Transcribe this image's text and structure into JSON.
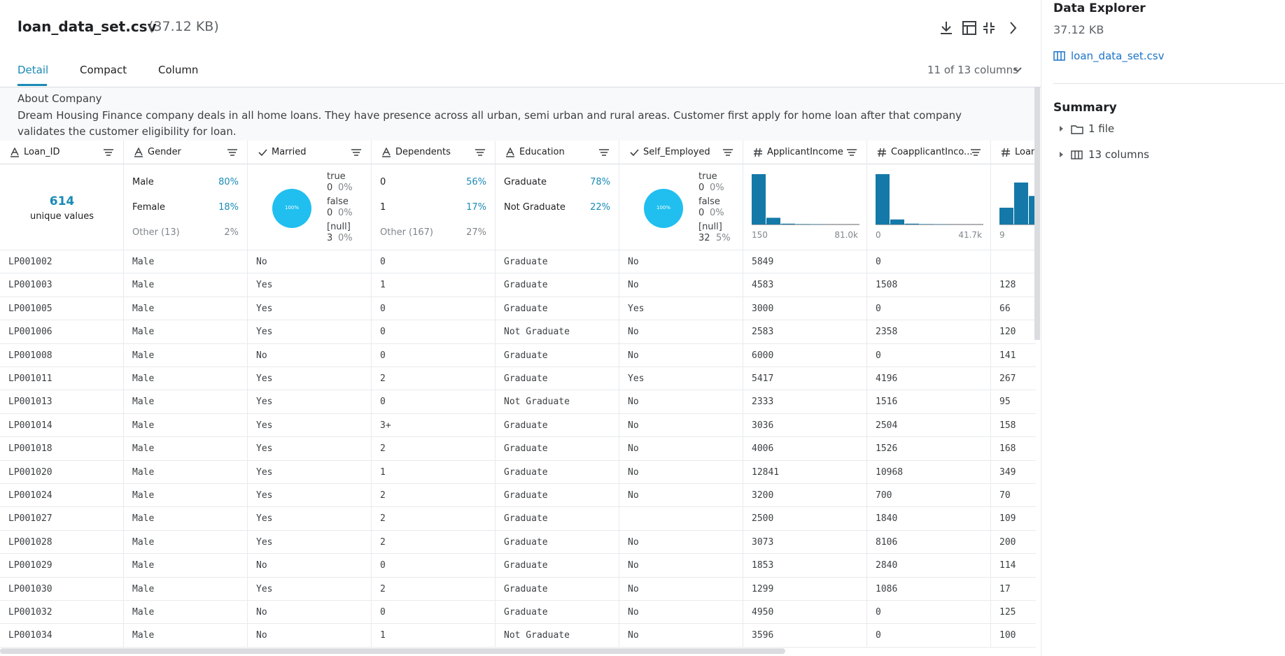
{
  "header": {
    "title": "loan_data_set.csv",
    "size": "(37.12 KB)",
    "tabs": [
      "Detail",
      "Compact",
      "Column"
    ],
    "columns_shown": "11 of 13 columns"
  },
  "about": {
    "heading": "About Company",
    "text": "Dream Housing Finance company deals in all home loans. They have presence across all urban, semi urban and rural areas. Customer first apply for home loan after that company validates the customer eligibility for loan."
  },
  "columns": [
    {
      "name": "Loan_ID",
      "summary": {
        "unique": {
          "count": "614",
          "label": "unique values"
        }
      }
    },
    {
      "name": "Gender",
      "summary": {
        "categories": [
          {
            "label": "Male",
            "pct": "80%"
          },
          {
            "label": "Female",
            "pct": "18%"
          },
          {
            "label": "Other (13)",
            "pct": "2%"
          }
        ]
      }
    },
    {
      "name": "Married",
      "summary": {
        "boolean": {
          "pie": "100%",
          "entries": [
            {
              "label": "true",
              "count": "0",
              "pct": "0%"
            },
            {
              "label": "false",
              "count": "0",
              "pct": "0%"
            },
            {
              "label": "[null]",
              "count": "3",
              "pct": "0%"
            }
          ]
        }
      }
    },
    {
      "name": "Dependents",
      "summary": {
        "categories": [
          {
            "label": "0",
            "pct": "56%"
          },
          {
            "label": "1",
            "pct": "17%"
          },
          {
            "label": "Other (167)",
            "pct": "27%"
          }
        ]
      }
    },
    {
      "name": "Education",
      "summary": {
        "categories": [
          {
            "label": "Graduate",
            "pct": "78%"
          },
          {
            "label": "Not Graduate",
            "pct": "22%"
          }
        ]
      }
    },
    {
      "name": "Self_Employed",
      "summary": {
        "boolean": {
          "pie": "100%",
          "entries": [
            {
              "label": "true",
              "count": "0",
              "pct": "0%"
            },
            {
              "label": "false",
              "count": "0",
              "pct": "0%"
            },
            {
              "label": "[null]",
              "count": "32",
              "pct": "5%"
            }
          ]
        }
      }
    },
    {
      "name": "ApplicantIncome",
      "summary": {
        "histogram": {
          "min": "150",
          "max": "81.0k"
        }
      }
    },
    {
      "name": "CoapplicantInco...",
      "summary": {
        "histogram": {
          "min": "0",
          "max": "41.7k"
        }
      }
    },
    {
      "name": "Loan",
      "summary": {
        "histogram": {
          "min": "9"
        }
      }
    }
  ],
  "rows": [
    [
      "LP001002",
      "Male",
      "No",
      "0",
      "Graduate",
      "No",
      "5849",
      "0",
      null
    ],
    [
      "LP001003",
      "Male",
      "Yes",
      "1",
      "Graduate",
      "No",
      "4583",
      "1508",
      "128"
    ],
    [
      "LP001005",
      "Male",
      "Yes",
      "0",
      "Graduate",
      "Yes",
      "3000",
      "0",
      "66"
    ],
    [
      "LP001006",
      "Male",
      "Yes",
      "0",
      "Not Graduate",
      "No",
      "2583",
      "2358",
      "120"
    ],
    [
      "LP001008",
      "Male",
      "No",
      "0",
      "Graduate",
      "No",
      "6000",
      "0",
      "141"
    ],
    [
      "LP001011",
      "Male",
      "Yes",
      "2",
      "Graduate",
      "Yes",
      "5417",
      "4196",
      "267"
    ],
    [
      "LP001013",
      "Male",
      "Yes",
      "0",
      "Not Graduate",
      "No",
      "2333",
      "1516",
      "95"
    ],
    [
      "LP001014",
      "Male",
      "Yes",
      "3+",
      "Graduate",
      "No",
      "3036",
      "2504",
      "158"
    ],
    [
      "LP001018",
      "Male",
      "Yes",
      "2",
      "Graduate",
      "No",
      "4006",
      "1526",
      "168"
    ],
    [
      "LP001020",
      "Male",
      "Yes",
      "1",
      "Graduate",
      "No",
      "12841",
      "10968",
      "349"
    ],
    [
      "LP001024",
      "Male",
      "Yes",
      "2",
      "Graduate",
      "No",
      "3200",
      "700",
      "70"
    ],
    [
      "LP001027",
      "Male",
      "Yes",
      "2",
      "Graduate",
      null,
      "2500",
      "1840",
      "109"
    ],
    [
      "LP001028",
      "Male",
      "Yes",
      "2",
      "Graduate",
      "No",
      "3073",
      "8106",
      "200"
    ],
    [
      "LP001029",
      "Male",
      "No",
      "0",
      "Graduate",
      "No",
      "1853",
      "2840",
      "114"
    ],
    [
      "LP001030",
      "Male",
      "Yes",
      "2",
      "Graduate",
      "No",
      "1299",
      "1086",
      "17"
    ],
    [
      "LP001032",
      "Male",
      "No",
      "0",
      "Graduate",
      "No",
      "4950",
      "0",
      "125"
    ],
    [
      "LP001034",
      "Male",
      "No",
      "1",
      "Not Graduate",
      "No",
      "3596",
      "0",
      "100"
    ]
  ],
  "sidebar": {
    "title": "Data Explorer",
    "size": "37.12 KB",
    "file": "loan_data_set.csv",
    "summary_title": "Summary",
    "items": [
      "1 file",
      "13 columns"
    ]
  }
}
